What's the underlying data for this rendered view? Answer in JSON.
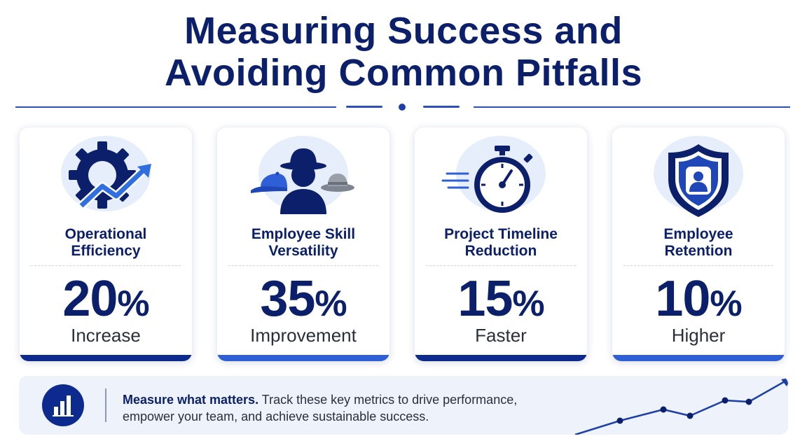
{
  "title": {
    "line1": "Measuring Success and",
    "line2": "Avoiding Common Pitfalls"
  },
  "colors": {
    "navy": "#0b1f6b",
    "accent_dark": "#0d2b8e",
    "accent_blue": "#2f5fd6",
    "icon_bg": "#e6eefb",
    "footer_bg": "#edf2fb"
  },
  "cards": [
    {
      "icon": "gear-growth-arrow-icon",
      "label_line1": "Operational",
      "label_line2": "Efficiency",
      "number": "20",
      "unit": "%",
      "sub": "Increase"
    },
    {
      "icon": "multiple-hats-icon",
      "label_line1": "Employee Skill",
      "label_line2": "Versatility",
      "number": "35",
      "unit": "%",
      "sub": "Improvement"
    },
    {
      "icon": "stopwatch-icon",
      "label_line1": "Project Timeline",
      "label_line2": "Reduction",
      "number": "15",
      "unit": "%",
      "sub": "Faster"
    },
    {
      "icon": "shield-person-icon",
      "label_line1": "Employee",
      "label_line2": "Retention",
      "number": "10",
      "unit": "%",
      "sub": "Higher"
    }
  ],
  "footer": {
    "icon": "bar-chart-icon",
    "headline": "Measure what matters.",
    "body_line1": " Track these key metrics to drive performance,",
    "body_line2": "empower your team, and achieve sustainable success.",
    "trend_icon": "upward-trend-line-icon"
  }
}
